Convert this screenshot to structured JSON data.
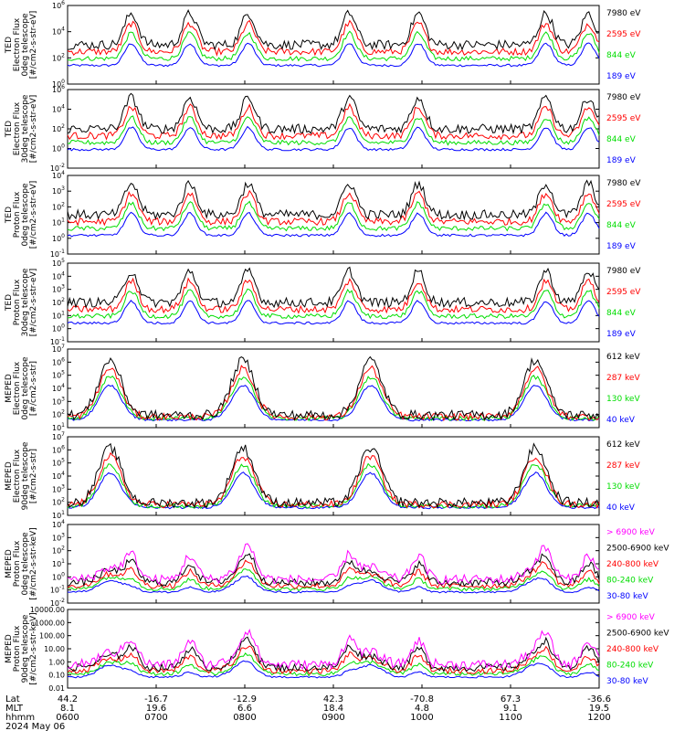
{
  "chart_data": [
    {
      "type": "line",
      "ylabel": [
        "TED",
        "Electron Flux",
        "0deg telescope",
        "[#/cm2-s-str-eV]"
      ],
      "ylim": [
        1,
        1000000
      ],
      "yscale": "log",
      "ytick_labels": [
        "10^0",
        "10^2",
        "10^4",
        "10^6"
      ],
      "series": [
        {
          "name": "7980 eV",
          "color": "#000000"
        },
        {
          "name": "2595 eV",
          "color": "#ff0000"
        },
        {
          "name": "844 eV",
          "color": "#00dd00"
        },
        {
          "name": "189 eV",
          "color": "#0000ff"
        }
      ]
    },
    {
      "type": "line",
      "ylabel": [
        "TED",
        "Electron Flux",
        "30deg telescope",
        "[#/cm2-s-str-eV]"
      ],
      "ylim": [
        0.01,
        1000000
      ],
      "yscale": "log",
      "ytick_labels": [
        "10^-2",
        "10^0",
        "10^2",
        "10^4",
        "10^6"
      ],
      "series": [
        {
          "name": "7980 eV",
          "color": "#000000"
        },
        {
          "name": "2595 eV",
          "color": "#ff0000"
        },
        {
          "name": "844 eV",
          "color": "#00dd00"
        },
        {
          "name": "189 eV",
          "color": "#0000ff"
        }
      ]
    },
    {
      "type": "line",
      "ylabel": [
        "TED",
        "Proton Flux",
        "0deg telescope",
        "[#/cm2-s-str-eV]"
      ],
      "ylim": [
        0.1,
        10000
      ],
      "yscale": "log",
      "ytick_labels": [
        "10^-1",
        "10^0",
        "10^1",
        "10^2",
        "10^3",
        "10^4"
      ],
      "series": [
        {
          "name": "7980 eV",
          "color": "#000000"
        },
        {
          "name": "2595 eV",
          "color": "#ff0000"
        },
        {
          "name": "844 eV",
          "color": "#00dd00"
        },
        {
          "name": "189 eV",
          "color": "#0000ff"
        }
      ]
    },
    {
      "type": "line",
      "ylabel": [
        "TED",
        "Proton Flux",
        "30deg telescope",
        "[#/cm2-s-str-eV]"
      ],
      "ylim": [
        0.1,
        100000
      ],
      "yscale": "log",
      "ytick_labels": [
        "10^-1",
        "10^0",
        "10^1",
        "10^2",
        "10^3",
        "10^4",
        "10^5"
      ],
      "series": [
        {
          "name": "7980 eV",
          "color": "#000000"
        },
        {
          "name": "2595 eV",
          "color": "#ff0000"
        },
        {
          "name": "844 eV",
          "color": "#00dd00"
        },
        {
          "name": "189 eV",
          "color": "#0000ff"
        }
      ]
    },
    {
      "type": "line",
      "ylabel": [
        "MEPED",
        "Electron Flux",
        "0deg telescope",
        "[#/cm2-s-str]"
      ],
      "ylim": [
        10,
        10000000
      ],
      "yscale": "log",
      "ytick_labels": [
        "10^1",
        "10^2",
        "10^3",
        "10^4",
        "10^5",
        "10^6",
        "10^7"
      ],
      "series": [
        {
          "name": "612 keV",
          "color": "#000000"
        },
        {
          "name": "287 keV",
          "color": "#ff0000"
        },
        {
          "name": "130 keV",
          "color": "#00dd00"
        },
        {
          "name": "40 keV",
          "color": "#0000ff"
        }
      ]
    },
    {
      "type": "line",
      "ylabel": [
        "MEPED",
        "Electron Flux",
        "90deg telescope",
        "[#/cm2-s-str]"
      ],
      "ylim": [
        10,
        10000000
      ],
      "yscale": "log",
      "ytick_labels": [
        "10^1",
        "10^2",
        "10^3",
        "10^4",
        "10^5",
        "10^6",
        "10^7"
      ],
      "series": [
        {
          "name": "612 keV",
          "color": "#000000"
        },
        {
          "name": "287 keV",
          "color": "#ff0000"
        },
        {
          "name": "130 keV",
          "color": "#00dd00"
        },
        {
          "name": "40 keV",
          "color": "#0000ff"
        }
      ]
    },
    {
      "type": "line",
      "ylabel": [
        "MEPED",
        "Proton Flux",
        "0deg telescope",
        "[#/cm2-s-str-keV]"
      ],
      "ylim": [
        0.01,
        10000
      ],
      "yscale": "log",
      "ytick_labels": [
        "10^-2",
        "10^-1",
        "10^0",
        "10^1",
        "10^2",
        "10^3",
        "10^4"
      ],
      "series": [
        {
          "name": "> 6900 keV",
          "color": "#ff00ff"
        },
        {
          "name": "2500-6900 keV",
          "color": "#000000"
        },
        {
          "name": "240-800 keV",
          "color": "#ff0000"
        },
        {
          "name": "80-240 keV",
          "color": "#00dd00"
        },
        {
          "name": "30-80 keV",
          "color": "#0000ff"
        }
      ]
    },
    {
      "type": "line",
      "ylabel": [
        "MEPED",
        "Proton Flux",
        "90deg telescope",
        "[#/cm2-s-str-keV]"
      ],
      "ylim": [
        0.01,
        10000
      ],
      "yscale": "log",
      "ytick_labels": [
        "0.01",
        "0.10",
        "1.00",
        "10.00",
        "100.00",
        "1000.00",
        "10000.00"
      ],
      "series": [
        {
          "name": "> 6900 keV",
          "color": "#ff00ff"
        },
        {
          "name": "2500-6900 keV",
          "color": "#000000"
        },
        {
          "name": "240-800 keV",
          "color": "#ff0000"
        },
        {
          "name": "80-240 keV",
          "color": "#00dd00"
        },
        {
          "name": "30-80 keV",
          "color": "#0000ff"
        }
      ]
    }
  ],
  "xaxis": {
    "row_labels": [
      "Lat",
      "MLT",
      "hhmm",
      "2024 May 06"
    ],
    "ticks": [
      {
        "lat": "44.2",
        "mlt": "8.1",
        "time": "0600"
      },
      {
        "lat": "-16.7",
        "mlt": "19.6",
        "time": "0700"
      },
      {
        "lat": "-12.9",
        "mlt": "6.6",
        "time": "0800"
      },
      {
        "lat": "42.3",
        "mlt": "18.4",
        "time": "0900"
      },
      {
        "lat": "-70.8",
        "mlt": "4.8",
        "time": "1000"
      },
      {
        "lat": "67.3",
        "mlt": "9.1",
        "time": "1100"
      },
      {
        "lat": "-36.6",
        "mlt": "19.5",
        "time": "1200"
      }
    ]
  }
}
